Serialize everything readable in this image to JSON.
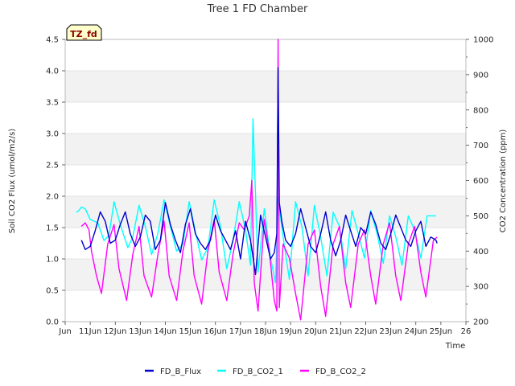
{
  "chart_data": {
    "type": "line",
    "title": "Tree 1 FD Chamber",
    "badge": "TZ_fd",
    "xlabel": "Time",
    "ylabel_left": "Soil CO2 Flux (umol/m2/s)",
    "ylabel_right": "CO2 Concentration (ppm)",
    "xlim": [
      10,
      26
    ],
    "ylim_left": [
      0,
      4.5
    ],
    "ylim_right": [
      200,
      1000
    ],
    "x_ticks": [
      10,
      11,
      12,
      13,
      14,
      15,
      16,
      17,
      18,
      19,
      20,
      21,
      22,
      23,
      24,
      25,
      26
    ],
    "x_tick_labels": [
      "Jun",
      "11Jun",
      "12Jun",
      "13Jun",
      "14Jun",
      "15Jun",
      "16Jun",
      "17Jun",
      "18Jun",
      "19Jun",
      "20Jun",
      "21Jun",
      "22Jun",
      "23Jun",
      "24Jun",
      "25Jun",
      "26"
    ],
    "y_left_ticks": [
      0.0,
      0.5,
      1.0,
      1.5,
      2.0,
      2.5,
      3.0,
      3.5,
      4.0,
      4.5
    ],
    "y_left_tick_labels": [
      "0.0",
      "0.5",
      "1.0",
      "1.5",
      "2.0",
      "2.5",
      "3.0",
      "3.5",
      "4.0",
      "4.5"
    ],
    "y_right_ticks": [
      200,
      300,
      400,
      500,
      600,
      700,
      800,
      900,
      1000
    ],
    "y_right_tick_labels": [
      "200",
      "300",
      "400",
      "500",
      "600",
      "700",
      "800",
      "900",
      "1000"
    ],
    "colors": {
      "FD_B_Flux": "#0000cc",
      "FD_B_CO2_1": "#00ffff",
      "FD_B_CO2_2": "#ff00ff",
      "band": "#f2f2f2",
      "grid": "#dddddd",
      "axis": "#bbbbbb",
      "badge_fill": "#ffffcc"
    },
    "series": [
      {
        "name": "FD_B_Flux",
        "axis": "left",
        "color": "#0000cc",
        "x": [
          10.65,
          10.8,
          11.0,
          11.2,
          11.4,
          11.6,
          11.8,
          12.0,
          12.2,
          12.4,
          12.6,
          12.8,
          13.0,
          13.2,
          13.4,
          13.6,
          13.8,
          14.0,
          14.2,
          14.4,
          14.6,
          14.8,
          15.0,
          15.2,
          15.4,
          15.6,
          15.8,
          16.0,
          16.2,
          16.4,
          16.6,
          16.8,
          17.0,
          17.2,
          17.4,
          17.6,
          17.8,
          18.0,
          18.2,
          18.35,
          18.45,
          18.5,
          18.55,
          18.65,
          18.8,
          19.0,
          19.2,
          19.4,
          19.6,
          19.8,
          20.0,
          20.2,
          20.4,
          20.6,
          20.8,
          21.0,
          21.2,
          21.4,
          21.6,
          21.8,
          22.0,
          22.2,
          22.4,
          22.6,
          22.8,
          23.0,
          23.2,
          23.4,
          23.6,
          23.8,
          24.0,
          24.2,
          24.4,
          24.6,
          24.8,
          24.85
        ],
        "y": [
          1.3,
          1.15,
          1.2,
          1.45,
          1.75,
          1.6,
          1.25,
          1.3,
          1.55,
          1.75,
          1.4,
          1.2,
          1.35,
          1.7,
          1.6,
          1.15,
          1.3,
          1.9,
          1.55,
          1.3,
          1.1,
          1.55,
          1.8,
          1.4,
          1.25,
          1.15,
          1.3,
          1.7,
          1.45,
          1.3,
          1.15,
          1.45,
          1.0,
          1.6,
          1.3,
          0.75,
          1.7,
          1.35,
          1.0,
          1.1,
          1.4,
          4.05,
          1.9,
          1.6,
          1.3,
          1.2,
          1.4,
          1.8,
          1.5,
          1.2,
          1.1,
          1.4,
          1.75,
          1.3,
          1.05,
          1.3,
          1.7,
          1.45,
          1.2,
          1.5,
          1.4,
          1.75,
          1.55,
          1.25,
          1.15,
          1.4,
          1.7,
          1.5,
          1.3,
          1.2,
          1.45,
          1.6,
          1.2,
          1.35,
          1.3,
          1.25
        ]
      },
      {
        "name": "FD_B_CO2_1",
        "axis": "right",
        "color": "#00ffff",
        "x": [
          10.45,
          10.55,
          10.65,
          10.8,
          11.0,
          11.3,
          11.55,
          11.75,
          11.95,
          12.2,
          12.5,
          12.7,
          12.95,
          13.2,
          13.45,
          13.7,
          13.95,
          14.2,
          14.45,
          14.7,
          14.95,
          15.2,
          15.45,
          15.7,
          15.95,
          16.2,
          16.45,
          16.7,
          16.95,
          17.2,
          17.4,
          17.5,
          17.7,
          17.95,
          18.2,
          18.4,
          18.5,
          18.7,
          18.95,
          19.2,
          19.45,
          19.7,
          19.95,
          20.2,
          20.45,
          20.7,
          20.95,
          21.2,
          21.45,
          21.7,
          21.95,
          22.2,
          22.45,
          22.7,
          22.95,
          23.2,
          23.45,
          23.7,
          23.95,
          24.2,
          24.45,
          24.7,
          24.8
        ],
        "y": [
          510,
          515,
          525,
          520,
          490,
          480,
          430,
          445,
          540,
          475,
          410,
          440,
          530,
          470,
          390,
          450,
          545,
          470,
          400,
          420,
          540,
          455,
          375,
          410,
          545,
          470,
          350,
          430,
          540,
          460,
          360,
          775,
          340,
          520,
          380,
          310,
          550,
          440,
          320,
          540,
          470,
          330,
          530,
          440,
          330,
          510,
          470,
          350,
          515,
          450,
          380,
          515,
          450,
          365,
          500,
          440,
          360,
          500,
          460,
          380,
          500,
          500,
          500
        ]
      },
      {
        "name": "FD_B_CO2_2",
        "axis": "right",
        "color": "#ff00ff",
        "x": [
          10.65,
          10.8,
          10.95,
          11.05,
          11.25,
          11.45,
          11.7,
          11.95,
          12.15,
          12.45,
          12.7,
          12.95,
          13.15,
          13.45,
          13.7,
          13.95,
          14.15,
          14.45,
          14.7,
          14.95,
          15.15,
          15.45,
          15.7,
          15.95,
          16.15,
          16.45,
          16.7,
          16.95,
          17.15,
          17.35,
          17.45,
          17.55,
          17.7,
          17.95,
          18.15,
          18.35,
          18.45,
          18.5,
          18.55,
          18.7,
          18.95,
          19.2,
          19.4,
          19.7,
          19.95,
          20.2,
          20.4,
          20.7,
          20.95,
          21.2,
          21.4,
          21.7,
          21.95,
          22.2,
          22.4,
          22.7,
          22.95,
          23.2,
          23.4,
          23.7,
          23.95,
          24.2,
          24.4,
          24.7,
          24.85
        ],
        "y": [
          470,
          480,
          460,
          400,
          330,
          280,
          420,
          475,
          350,
          260,
          390,
          470,
          330,
          270,
          390,
          485,
          330,
          260,
          400,
          480,
          330,
          250,
          400,
          490,
          340,
          260,
          390,
          480,
          460,
          500,
          600,
          310,
          230,
          490,
          400,
          260,
          230,
          1000,
          240,
          420,
          380,
          280,
          205,
          420,
          460,
          300,
          215,
          420,
          470,
          310,
          240,
          420,
          460,
          330,
          250,
          420,
          480,
          330,
          260,
          420,
          470,
          340,
          270,
          430,
          440
        ]
      }
    ]
  }
}
